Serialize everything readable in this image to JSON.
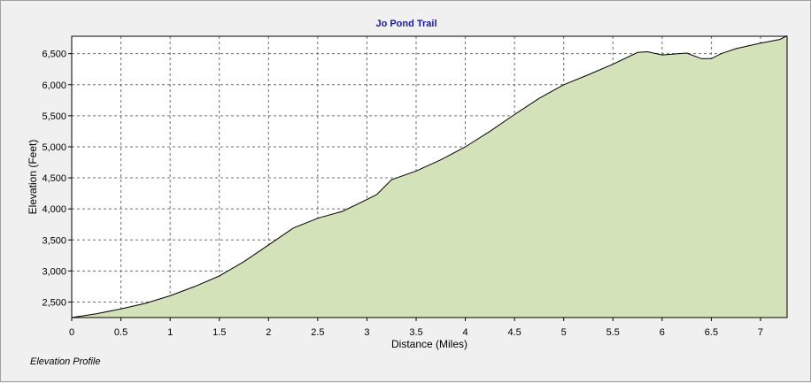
{
  "chart_data": {
    "type": "area",
    "title": "Jo Pond Trail",
    "xlabel": "Distance (Miles)",
    "ylabel": "Elevation (Feet)",
    "caption": "Elevation Profile",
    "xlim": [
      0,
      7.27
    ],
    "ylim": [
      2250,
      6780
    ],
    "x_ticks": [
      0,
      0.5,
      1,
      1.5,
      2,
      2.5,
      3,
      3.5,
      4,
      4.5,
      5,
      5.5,
      6,
      6.5,
      7
    ],
    "x_tick_labels": [
      "0",
      "0.5",
      "1",
      "1.5",
      "2",
      "2.5",
      "3",
      "3.5",
      "4",
      "4.5",
      "5",
      "5.5",
      "6",
      "6.5",
      "7"
    ],
    "y_ticks": [
      2500,
      3000,
      3500,
      4000,
      4500,
      5000,
      5500,
      6000,
      6500
    ],
    "y_tick_labels": [
      "2,500",
      "3,000",
      "3,500",
      "4,000",
      "4,500",
      "5,000",
      "5,500",
      "6,000",
      "6,500"
    ],
    "grid": true,
    "colors": {
      "fill": "#d3e2b9",
      "line": "#000000",
      "grid": "#6e6e6e",
      "title": "#1a1aa6",
      "plot_bg": "#ffffff"
    },
    "series": [
      {
        "x": [
          0,
          0.25,
          0.5,
          0.75,
          1.0,
          1.25,
          1.5,
          1.75,
          2.0,
          2.25,
          2.5,
          2.75,
          3.0,
          3.1,
          3.25,
          3.5,
          3.75,
          4.0,
          4.25,
          4.5,
          4.75,
          5.0,
          5.25,
          5.5,
          5.75,
          5.85,
          6.0,
          6.25,
          6.4,
          6.5,
          6.6,
          6.75,
          7.0,
          7.2,
          7.27
        ],
        "y": [
          2250,
          2310,
          2390,
          2480,
          2600,
          2750,
          2920,
          3150,
          3420,
          3690,
          3850,
          3960,
          4150,
          4230,
          4470,
          4610,
          4790,
          5000,
          5250,
          5520,
          5780,
          6000,
          6160,
          6330,
          6520,
          6530,
          6480,
          6510,
          6420,
          6420,
          6500,
          6580,
          6670,
          6730,
          6790
        ]
      }
    ]
  }
}
